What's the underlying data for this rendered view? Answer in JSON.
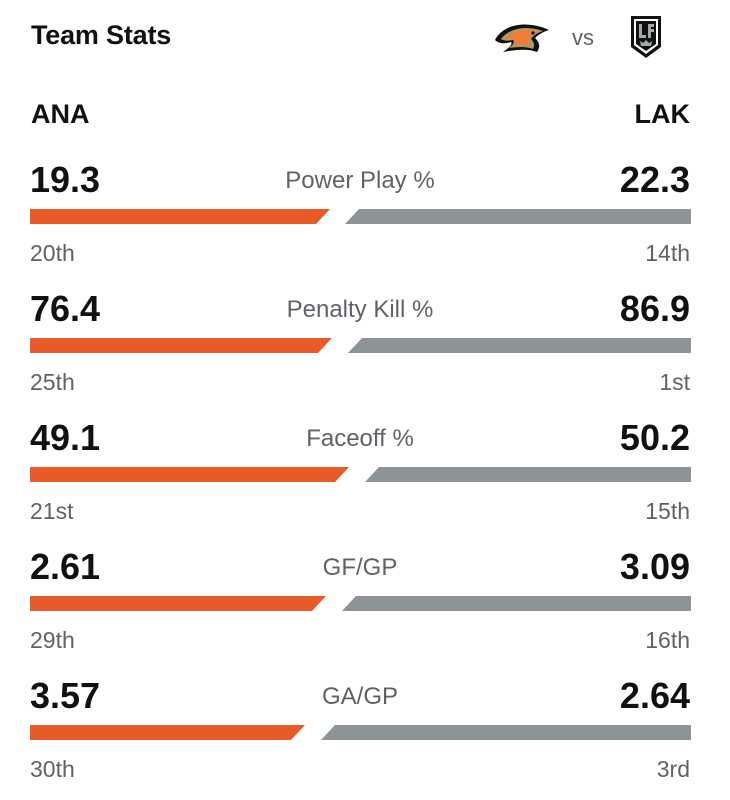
{
  "header": {
    "title": "Team Stats",
    "vs_label": "vs",
    "home_logo_icon": "anaheim-ducks-logo-icon",
    "away_logo_icon": "la-kings-logo-icon"
  },
  "teams": {
    "left": "ANA",
    "right": "LAK"
  },
  "colors": {
    "left_bar": "#e85a27",
    "right_bar": "#8c9496"
  },
  "stats": [
    {
      "label": "Power Play %",
      "left_value": "19.3",
      "right_value": "22.3",
      "left_rank": "20th",
      "right_rank": "14th"
    },
    {
      "label": "Penalty Kill %",
      "left_value": "76.4",
      "right_value": "86.9",
      "left_rank": "25th",
      "right_rank": "1st"
    },
    {
      "label": "Faceoff %",
      "left_value": "49.1",
      "right_value": "50.2",
      "left_rank": "21st",
      "right_rank": "15th"
    },
    {
      "label": "GF/GP",
      "left_value": "2.61",
      "right_value": "3.09",
      "left_rank": "29th",
      "right_rank": "16th"
    },
    {
      "label": "GA/GP",
      "left_value": "3.57",
      "right_value": "2.64",
      "left_rank": "30th",
      "right_rank": "3rd"
    }
  ]
}
